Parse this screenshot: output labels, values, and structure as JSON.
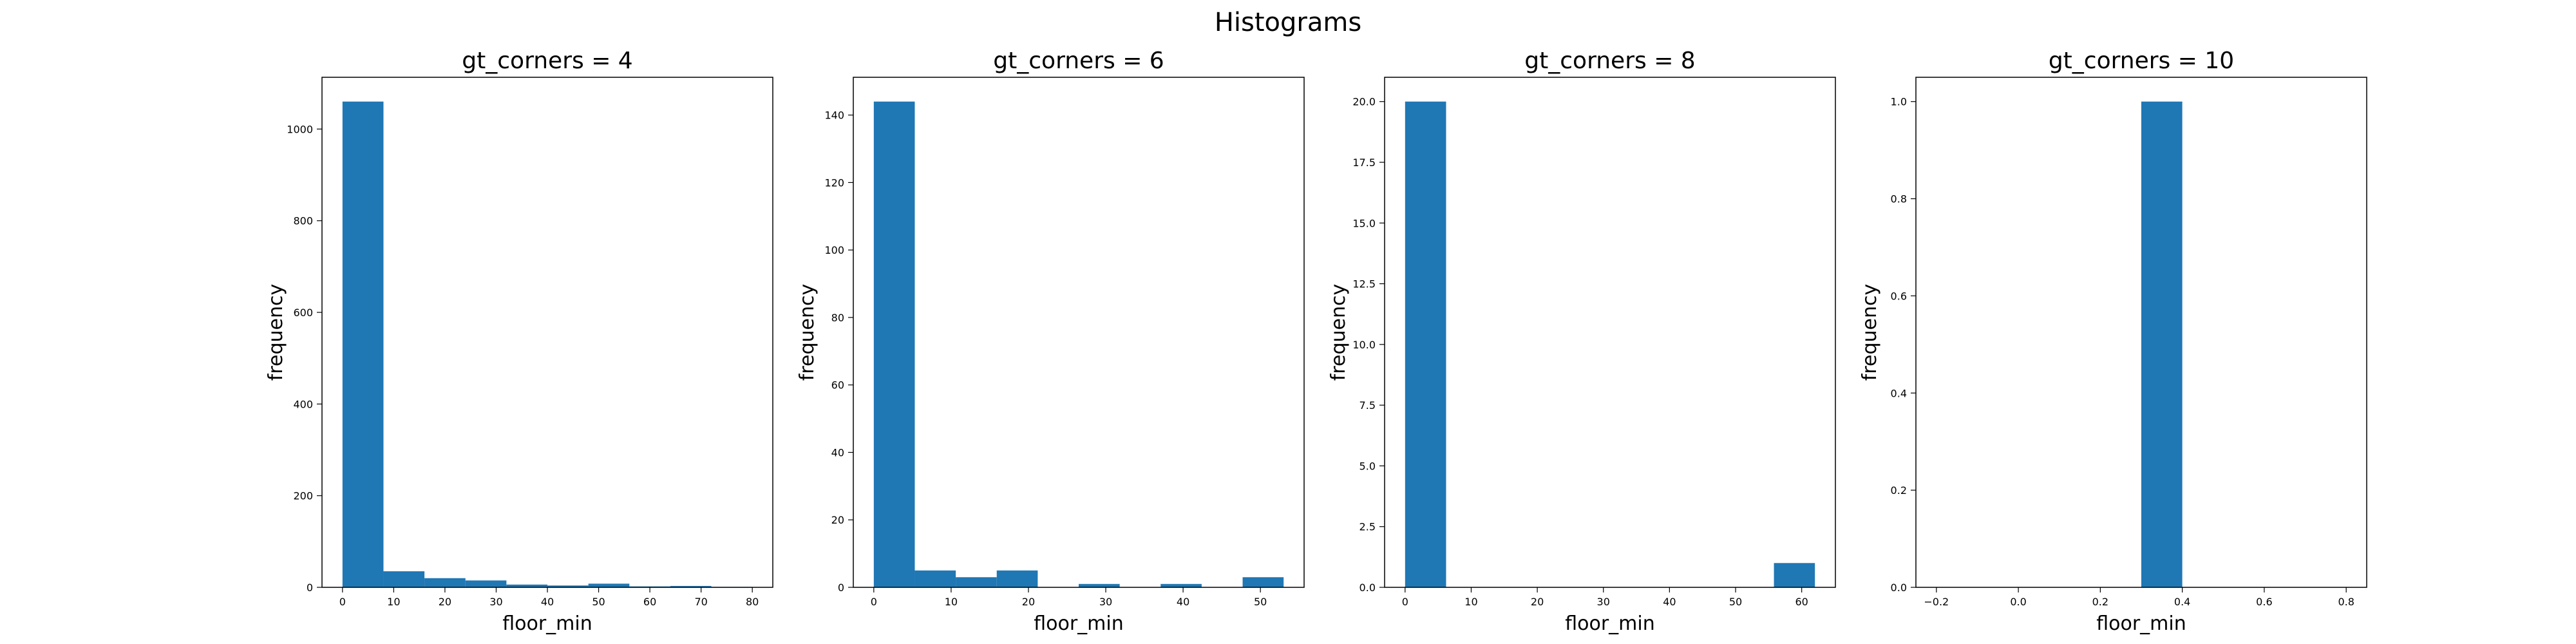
{
  "figure": {
    "title": "Histograms",
    "bar_color": "#1f77b4"
  },
  "chart_data": [
    {
      "type": "bar",
      "title": "gt_corners = 4",
      "xlabel": "floor_min",
      "ylabel": "frequency",
      "bin_edges": [
        0,
        8,
        16,
        24,
        32,
        40,
        48,
        56,
        64,
        72,
        80
      ],
      "values": [
        1060,
        35,
        20,
        15,
        6,
        4,
        8,
        2,
        3,
        1
      ],
      "xlim": [
        -4,
        84
      ],
      "ylim": [
        0,
        1113
      ],
      "xticks": [
        0,
        10,
        20,
        30,
        40,
        50,
        60,
        70,
        80
      ],
      "xtick_labels": [
        "0",
        "10",
        "20",
        "30",
        "40",
        "50",
        "60",
        "70",
        "80"
      ],
      "yticks": [
        0,
        200,
        400,
        600,
        800,
        1000
      ],
      "ytick_labels": [
        "0",
        "200",
        "400",
        "600",
        "800",
        "1000"
      ],
      "grid": false
    },
    {
      "type": "bar",
      "title": "gt_corners = 6",
      "xlabel": "floor_min",
      "ylabel": "frequency",
      "bin_edges": [
        0,
        5.3,
        10.6,
        15.9,
        21.2,
        26.5,
        31.8,
        37.1,
        42.4,
        47.7,
        53
      ],
      "values": [
        144,
        5,
        3,
        5,
        0,
        1,
        0,
        1,
        0,
        3
      ],
      "xlim": [
        -2.65,
        55.65
      ],
      "ylim": [
        0,
        151.2
      ],
      "xticks": [
        0,
        10,
        20,
        30,
        40,
        50
      ],
      "xtick_labels": [
        "0",
        "10",
        "20",
        "30",
        "40",
        "50"
      ],
      "yticks": [
        0,
        20,
        40,
        60,
        80,
        100,
        120,
        140
      ],
      "ytick_labels": [
        "0",
        "20",
        "40",
        "60",
        "80",
        "100",
        "120",
        "140"
      ],
      "grid": false
    },
    {
      "type": "bar",
      "title": "gt_corners = 8",
      "xlabel": "floor_min",
      "ylabel": "frequency",
      "bin_edges": [
        0,
        6.2,
        12.4,
        18.6,
        24.8,
        31,
        37.2,
        43.4,
        49.6,
        55.8,
        62
      ],
      "values": [
        20,
        0,
        0,
        0,
        0,
        0,
        0,
        0,
        0,
        1
      ],
      "xlim": [
        -3.1,
        65.1
      ],
      "ylim": [
        0,
        21
      ],
      "xticks": [
        0,
        10,
        20,
        30,
        40,
        50,
        60
      ],
      "xtick_labels": [
        "0",
        "10",
        "20",
        "30",
        "40",
        "50",
        "60"
      ],
      "yticks": [
        0,
        2.5,
        5,
        7.5,
        10,
        12.5,
        15,
        17.5,
        20
      ],
      "ytick_labels": [
        "0.0",
        "2.5",
        "5.0",
        "7.5",
        "10.0",
        "12.5",
        "15.0",
        "17.5",
        "20.0"
      ],
      "grid": false
    },
    {
      "type": "bar",
      "title": "gt_corners = 10",
      "xlabel": "floor_min",
      "ylabel": "frequency",
      "bin_edges": [
        -0.2,
        -0.1,
        0.0,
        0.1,
        0.2,
        0.3,
        0.4,
        0.5,
        0.6,
        0.7,
        0.8
      ],
      "values": [
        0,
        0,
        0,
        0,
        0,
        1,
        0,
        0,
        0,
        0
      ],
      "xlim": [
        -0.25,
        0.85
      ],
      "ylim": [
        0,
        1.05
      ],
      "xticks": [
        -0.2,
        0.0,
        0.2,
        0.4,
        0.6,
        0.8
      ],
      "xtick_labels": [
        "−0.2",
        "0.0",
        "0.2",
        "0.4",
        "0.6",
        "0.8"
      ],
      "yticks": [
        0,
        0.2,
        0.4,
        0.6,
        0.8,
        1.0
      ],
      "ytick_labels": [
        "0.0",
        "0.2",
        "0.4",
        "0.6",
        "0.8",
        "1.0"
      ],
      "grid": false
    }
  ]
}
